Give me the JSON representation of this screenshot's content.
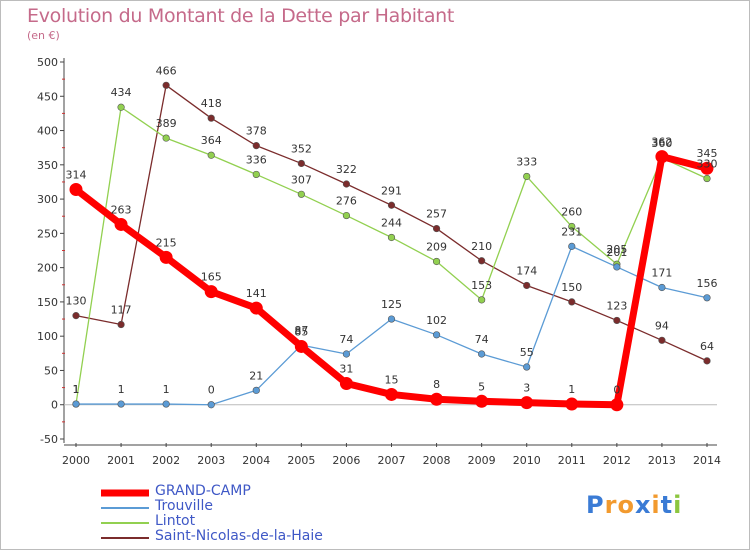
{
  "title": "Evolution du Montant de la Dette par Habitant",
  "unit_label": "(en €)",
  "logo_text": "Proxiti",
  "chart_data": {
    "type": "line",
    "title": "Evolution du Montant de la Dette par Habitant",
    "subtitle": "(en €)",
    "xlabel": "",
    "ylabel": "",
    "ylim": [
      -50,
      500
    ],
    "yticks": [
      -50,
      0,
      50,
      100,
      150,
      200,
      250,
      300,
      350,
      400,
      450,
      500
    ],
    "grid": false,
    "legend_position": "bottom-left",
    "x": [
      "2000",
      "2001",
      "2002",
      "2003",
      "2004",
      "2005",
      "2006",
      "2007",
      "2008",
      "2009",
      "2010",
      "2011",
      "2012",
      "2013",
      "2014"
    ],
    "series": [
      {
        "name": "GRAND-CAMP",
        "color": "#ff0000",
        "values": [
          314,
          263,
          215,
          165,
          141,
          85,
          31,
          15,
          8,
          5,
          3,
          1,
          0,
          362,
          345
        ]
      },
      {
        "name": "Trouville",
        "color": "#5b9bd5",
        "values": [
          1,
          1,
          1,
          0,
          21,
          87,
          74,
          125,
          102,
          74,
          55,
          231,
          201,
          171,
          156
        ]
      },
      {
        "name": "Lintot",
        "color": "#92d050",
        "values": [
          1,
          434,
          389,
          364,
          336,
          307,
          276,
          244,
          209,
          153,
          333,
          260,
          205,
          360,
          330
        ]
      },
      {
        "name": "Saint-Nicolas-de-la-Haie",
        "color": "#7b2c2c",
        "values": [
          130,
          117,
          466,
          418,
          378,
          352,
          322,
          291,
          257,
          210,
          174,
          150,
          123,
          94,
          64
        ]
      }
    ]
  }
}
